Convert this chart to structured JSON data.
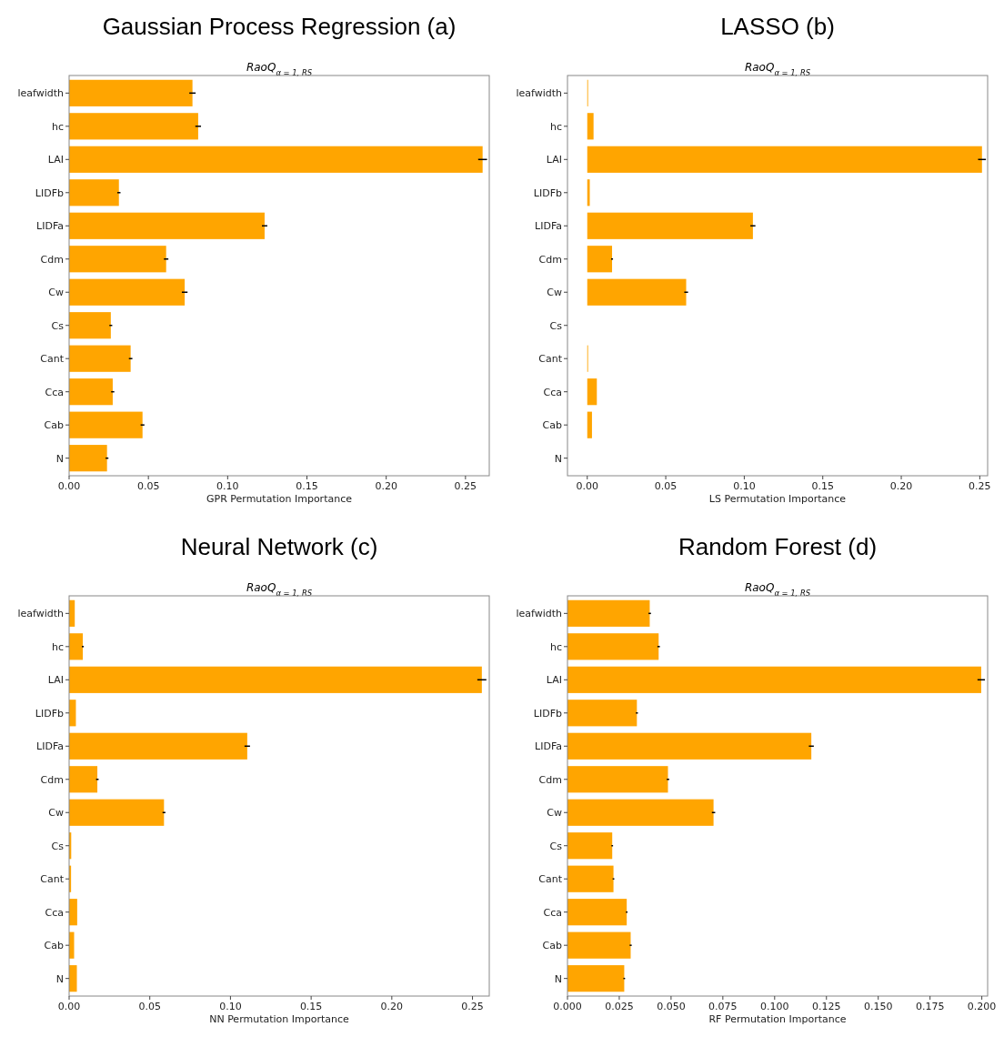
{
  "chart_data": [
    {
      "type": "bar",
      "orientation": "horizontal",
      "title": "Gaussian Process Regression (a)",
      "subtitle": "RaoQ$_{α = 1, RS}$",
      "xlabel": "GPR Permutation Importance",
      "categories": [
        "leafwidth",
        "hc",
        "LAI",
        "LIDFb",
        "LIDFa",
        "Cdm",
        "Cw",
        "Cs",
        "Cant",
        "Cca",
        "Cab",
        "N"
      ],
      "values": [
        0.0778,
        0.0814,
        0.2608,
        0.0314,
        0.1233,
        0.0612,
        0.0729,
        0.0263,
        0.0388,
        0.0275,
        0.0463,
        0.0239
      ],
      "errors": [
        0.002,
        0.0018,
        0.0028,
        0.001,
        0.0017,
        0.0014,
        0.0018,
        0.0009,
        0.0011,
        0.001,
        0.0012,
        0.0009
      ],
      "color": "#ffa500",
      "xlim": [
        0,
        0.265
      ],
      "xticks": [
        {
          "value": 0,
          "label": "0.00"
        },
        0.05,
        {
          "value": 0.1,
          "label": "0.10"
        },
        0.15,
        {
          "value": 0.2,
          "label": "0.20"
        },
        0.25
      ],
      "grid": false
    },
    {
      "type": "bar",
      "orientation": "horizontal",
      "title": "LASSO (b)",
      "subtitle": "RaoQ$_{α = 1, RS}$",
      "xlabel": "LS Permutation Importance",
      "categories": [
        "leafwidth",
        "hc",
        "LAI",
        "LIDFb",
        "LIDFa",
        "Cdm",
        "Cw",
        "Cs",
        "Cant",
        "Cca",
        "Cab",
        "N"
      ],
      "values": [
        0.0005,
        0.004,
        0.2514,
        0.0016,
        0.1055,
        0.0158,
        0.063,
        0,
        0.0005,
        0.0061,
        0.003,
        0
      ],
      "errors": [
        null,
        null,
        0.0025,
        null,
        0.0016,
        0.0006,
        0.0012,
        null,
        null,
        null,
        null,
        null
      ],
      "color": "#ffa500",
      "xlim": [
        -0.0126,
        0.255
      ],
      "xticks": [
        {
          "value": 0,
          "label": "0.00"
        },
        0.05,
        {
          "value": 0.1,
          "label": "0.10"
        },
        0.15,
        {
          "value": 0.2,
          "label": "0.20"
        },
        0.25
      ],
      "grid": false
    },
    {
      "type": "bar",
      "orientation": "horizontal",
      "title": "Neural Network (c)",
      "subtitle": "RaoQ$_{α = 1, RS}$",
      "xlabel": "NN Permutation Importance",
      "categories": [
        "leafwidth",
        "hc",
        "LAI",
        "LIDFb",
        "LIDFa",
        "Cdm",
        "Cw",
        "Cs",
        "Cant",
        "Cca",
        "Cab",
        "N"
      ],
      "values": [
        0.0035,
        0.0085,
        0.2558,
        0.0042,
        0.1104,
        0.0175,
        0.0588,
        0.0013,
        0.0012,
        0.005,
        0.0031,
        0.0048
      ],
      "errors": [
        null,
        0.0006,
        0.0028,
        null,
        0.0017,
        0.0008,
        0.0009,
        null,
        null,
        null,
        null,
        null
      ],
      "color": "#ffa500",
      "xlim": [
        0,
        0.2604
      ],
      "xticks": [
        {
          "value": 0,
          "label": "0.00"
        },
        0.05,
        {
          "value": 0.1,
          "label": "0.10"
        },
        0.15,
        {
          "value": 0.2,
          "label": "0.20"
        },
        0.25
      ],
      "grid": false
    },
    {
      "type": "bar",
      "orientation": "horizontal",
      "title": "Random Forest (d)",
      "subtitle": "RaoQ$_{α = 1, RS}$",
      "xlabel": "RF Permutation Importance",
      "categories": [
        "leafwidth",
        "hc",
        "LAI",
        "LIDFb",
        "LIDFa",
        "Cdm",
        "Cw",
        "Cs",
        "Cant",
        "Cca",
        "Cab",
        "N"
      ],
      "values": [
        0.0397,
        0.044,
        0.1997,
        0.0335,
        0.1177,
        0.0485,
        0.0705,
        0.0216,
        0.0222,
        0.0286,
        0.0305,
        0.0274
      ],
      "errors": [
        0.0006,
        0.0006,
        0.0018,
        0.0005,
        0.0012,
        0.0006,
        0.0008,
        0.0004,
        0.0004,
        0.0004,
        0.0005,
        0.0004
      ],
      "color": "#ffa500",
      "xlim": [
        0,
        0.2028
      ],
      "xticks": [
        {
          "value": 0,
          "label": "0.000"
        },
        0.025,
        {
          "value": 0.05,
          "label": "0.050"
        },
        0.075,
        {
          "value": 0.1,
          "label": "0.100"
        },
        0.125,
        {
          "value": 0.15,
          "label": "0.150"
        },
        0.175,
        {
          "value": 0.2,
          "label": "0.200"
        }
      ],
      "grid": false
    }
  ]
}
